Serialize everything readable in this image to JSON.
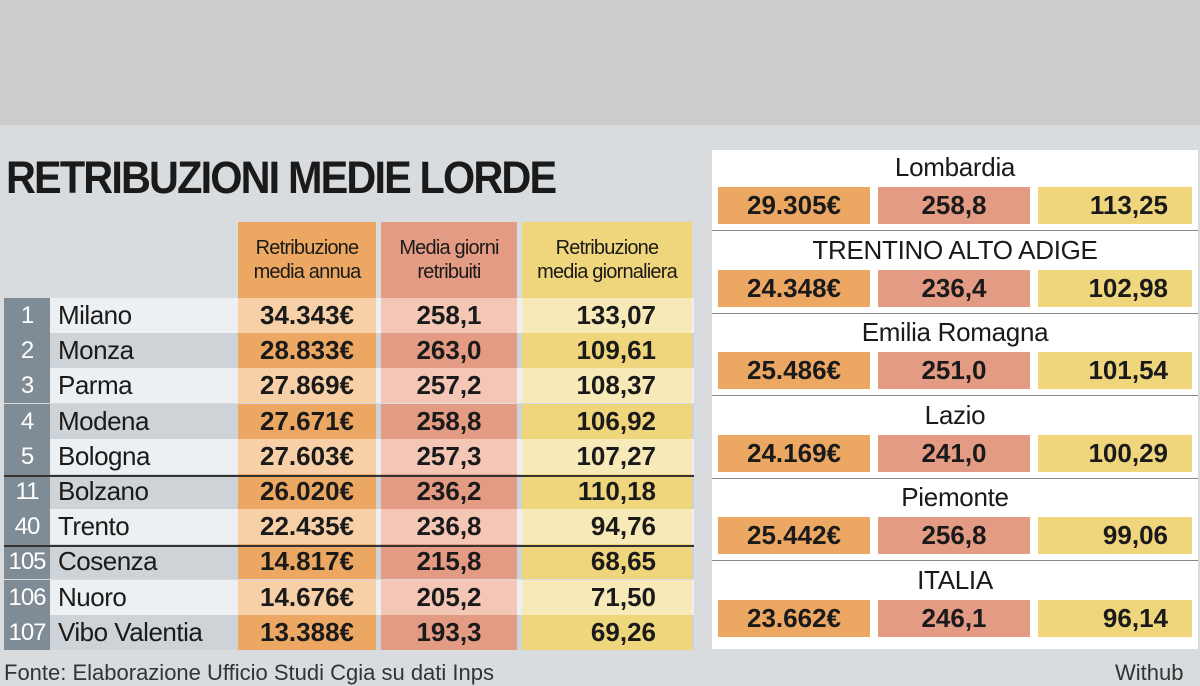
{
  "title": "RETRIBUZIONI MEDIE LORDE",
  "headers": [
    "Retribuzione media annua",
    "Media giorni retribuiti",
    "Retribuzione media giornaliera"
  ],
  "header_lines": [
    [
      "Retribuzione",
      "media annua"
    ],
    [
      "Media giorni",
      "retribuiti"
    ],
    [
      "Retribuzione",
      "media giornaliera"
    ]
  ],
  "colors": {
    "orange": "#eca863",
    "salmon": "#e39b84",
    "yellow": "#efd57c",
    "rank": "#7f8c95"
  },
  "rows": [
    {
      "rank": "1",
      "city": "Milano",
      "annua": "34.343€",
      "giorni": "258,1",
      "giornaliera": "133,07"
    },
    {
      "rank": "2",
      "city": "Monza",
      "annua": "28.833€",
      "giorni": "263,0",
      "giornaliera": "109,61"
    },
    {
      "rank": "3",
      "city": "Parma",
      "annua": "27.869€",
      "giorni": "257,2",
      "giornaliera": "108,37"
    },
    {
      "rank": "4",
      "city": "Modena",
      "annua": "27.671€",
      "giorni": "258,8",
      "giornaliera": "106,92"
    },
    {
      "rank": "5",
      "city": "Bologna",
      "annua": "27.603€",
      "giorni": "257,3",
      "giornaliera": "107,27"
    },
    {
      "rank": "11",
      "city": "Bolzano",
      "annua": "26.020€",
      "giorni": "236,2",
      "giornaliera": "110,18"
    },
    {
      "rank": "40",
      "city": "Trento",
      "annua": "22.435€",
      "giorni": "236,8",
      "giornaliera": "94,76"
    },
    {
      "rank": "105",
      "city": "Cosenza",
      "annua": "14.817€",
      "giorni": "215,8",
      "giornaliera": "68,65"
    },
    {
      "rank": "106",
      "city": "Nuoro",
      "annua": "14.676€",
      "giorni": "205,2",
      "giornaliera": "71,50"
    },
    {
      "rank": "107",
      "city": "Vibo Valentia",
      "annua": "13.388€",
      "giorni": "193,3",
      "giornaliera": "69,26"
    }
  ],
  "regions": [
    {
      "name": "Lombardia",
      "annua": "29.305€",
      "giorni": "258,8",
      "giornaliera": "113,25"
    },
    {
      "name": "TRENTINO ALTO ADIGE",
      "annua": "24.348€",
      "giorni": "236,4",
      "giornaliera": "102,98"
    },
    {
      "name": "Emilia Romagna",
      "annua": "25.486€",
      "giorni": "251,0",
      "giornaliera": "101,54"
    },
    {
      "name": "Lazio",
      "annua": "24.169€",
      "giorni": "241,0",
      "giornaliera": "100,29"
    },
    {
      "name": "Piemonte",
      "annua": "25.442€",
      "giorni": "256,8",
      "giornaliera": "99,06"
    },
    {
      "name": "ITALIA",
      "annua": "23.662€",
      "giorni": "246,1",
      "giornaliera": "96,14"
    }
  ],
  "source": "Fonte: Elaborazione Ufficio Studi Cgia su dati Inps",
  "credit": "Withub"
}
